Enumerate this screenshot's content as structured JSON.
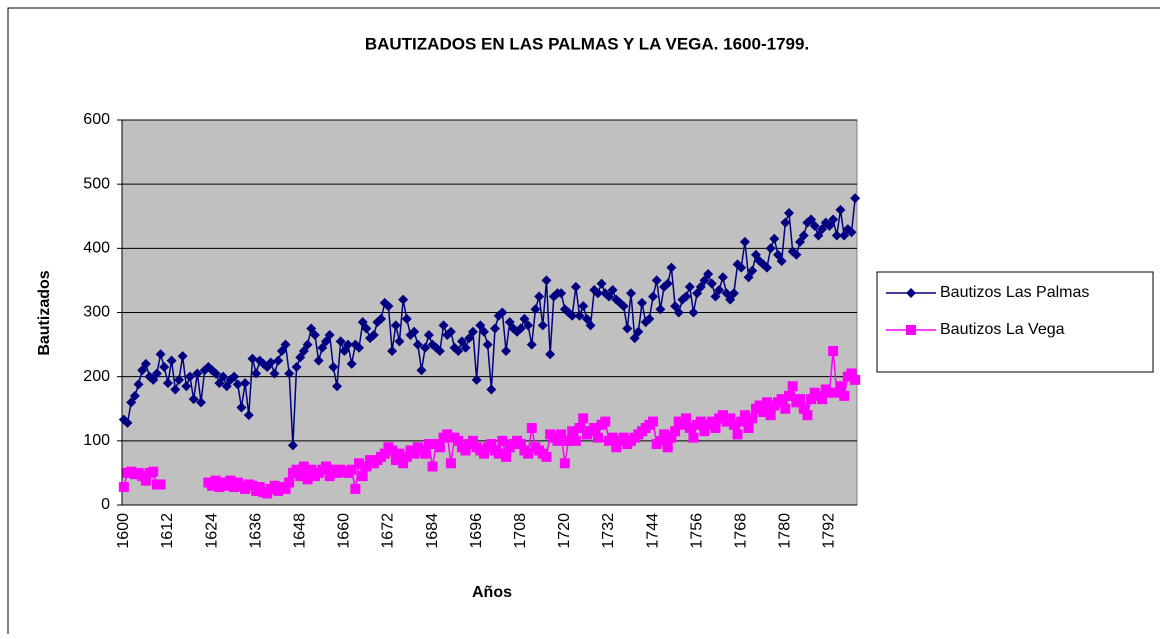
{
  "chart_data": {
    "type": "line",
    "title": "BAUTIZADOS EN LAS PALMAS Y LA VEGA. 1600-1799.",
    "x_label": "Años",
    "y_label": "Bautizados",
    "categories": [
      1600,
      null,
      null,
      null,
      null,
      null,
      null,
      null,
      null,
      null,
      null,
      null,
      1612,
      null,
      null,
      null,
      null,
      null,
      null,
      null,
      null,
      null,
      null,
      null,
      1624,
      null,
      null,
      null,
      null,
      null,
      null,
      null,
      null,
      null,
      null,
      null,
      1636,
      null,
      null,
      null,
      null,
      null,
      null,
      null,
      null,
      null,
      null,
      null,
      1648,
      null,
      null,
      null,
      null,
      null,
      null,
      null,
      null,
      null,
      null,
      null,
      1660,
      null,
      null,
      null,
      null,
      null,
      null,
      null,
      null,
      null,
      null,
      null,
      1672,
      null,
      null,
      null,
      null,
      null,
      null,
      null,
      null,
      null,
      null,
      null,
      1684,
      null,
      null,
      null,
      null,
      null,
      null,
      null,
      null,
      null,
      null,
      null,
      1696,
      null,
      null,
      null,
      null,
      null,
      null,
      null,
      null,
      null,
      null,
      null,
      1708,
      null,
      null,
      null,
      null,
      null,
      null,
      null,
      null,
      null,
      null,
      null,
      1720,
      null,
      null,
      null,
      null,
      null,
      null,
      null,
      null,
      null,
      null,
      null,
      1732,
      null,
      null,
      null,
      null,
      null,
      null,
      null,
      null,
      null,
      null,
      null,
      1744,
      null,
      null,
      null,
      null,
      null,
      null,
      null,
      null,
      null,
      null,
      null,
      1756,
      null,
      null,
      null,
      null,
      null,
      null,
      null,
      null,
      null,
      null,
      null,
      1768,
      null,
      null,
      null,
      null,
      null,
      null,
      null,
      null,
      null,
      null,
      null,
      1780,
      null,
      null,
      null,
      null,
      null,
      null,
      null,
      null,
      null,
      null,
      null,
      1792,
      null,
      null,
      null,
      null,
      null,
      null,
      null
    ],
    "series": [
      {
        "name": "Bautizos Las Palmas",
        "color": "#000080",
        "marker": "diamond",
        "values": [
          133,
          128,
          160,
          170,
          188,
          210,
          220,
          200,
          195,
          205,
          235,
          215,
          190,
          225,
          180,
          195,
          232,
          185,
          200,
          165,
          205,
          160,
          210,
          215,
          210,
          205,
          190,
          200,
          185,
          195,
          200,
          188,
          152,
          190,
          140,
          228,
          205,
          225,
          220,
          215,
          222,
          205,
          225,
          240,
          250,
          205,
          93,
          215,
          230,
          240,
          250,
          275,
          265,
          225,
          245,
          255,
          265,
          215,
          185,
          255,
          240,
          250,
          220,
          250,
          245,
          285,
          275,
          260,
          265,
          285,
          290,
          315,
          310,
          240,
          280,
          255,
          320,
          290,
          265,
          270,
          250,
          210,
          245,
          265,
          250,
          245,
          240,
          280,
          265,
          270,
          245,
          240,
          255,
          245,
          260,
          270,
          195,
          280,
          270,
          250,
          180,
          275,
          295,
          300,
          240,
          285,
          275,
          270,
          275,
          290,
          280,
          250,
          305,
          325,
          280,
          350,
          235,
          325,
          330,
          330,
          305,
          300,
          295,
          340,
          295,
          310,
          290,
          280,
          335,
          330,
          345,
          330,
          325,
          335,
          320,
          315,
          310,
          275,
          330,
          260,
          270,
          315,
          285,
          290,
          325,
          350,
          305,
          340,
          345,
          370,
          310,
          300,
          320,
          325,
          340,
          300,
          330,
          340,
          350,
          360,
          345,
          325,
          335,
          355,
          330,
          320,
          330,
          375,
          370,
          410,
          355,
          365,
          390,
          380,
          375,
          370,
          400,
          415,
          390,
          380,
          440,
          455,
          395,
          390,
          410,
          420,
          440,
          445,
          435,
          420,
          430,
          440,
          435,
          445,
          420,
          460,
          420,
          430,
          425,
          478
        ]
      },
      {
        "name": "Bautizos La Vega",
        "color": "#ff00ff",
        "marker": "square",
        "values": [
          28,
          50,
          52,
          48,
          50,
          45,
          38,
          50,
          52,
          32,
          32,
          null,
          null,
          null,
          null,
          null,
          null,
          null,
          null,
          null,
          null,
          null,
          null,
          35,
          30,
          38,
          28,
          35,
          30,
          38,
          28,
          35,
          30,
          25,
          32,
          30,
          22,
          28,
          20,
          18,
          25,
          30,
          22,
          28,
          25,
          35,
          50,
          55,
          45,
          60,
          40,
          55,
          45,
          50,
          55,
          60,
          45,
          55,
          50,
          55,
          52,
          50,
          55,
          25,
          65,
          45,
          60,
          70,
          65,
          70,
          75,
          80,
          90,
          85,
          70,
          80,
          65,
          75,
          85,
          80,
          90,
          85,
          80,
          95,
          60,
          95,
          90,
          105,
          110,
          65,
          105,
          100,
          90,
          85,
          95,
          100,
          90,
          85,
          80,
          90,
          95,
          85,
          80,
          100,
          75,
          90,
          95,
          100,
          95,
          85,
          80,
          120,
          90,
          85,
          80,
          75,
          110,
          105,
          100,
          110,
          65,
          100,
          115,
          100,
          120,
          135,
          110,
          115,
          120,
          105,
          125,
          130,
          100,
          105,
          90,
          100,
          105,
          95,
          100,
          105,
          110,
          115,
          120,
          125,
          130,
          95,
          100,
          110,
          90,
          105,
          115,
          130,
          125,
          135,
          120,
          105,
          125,
          130,
          115,
          125,
          130,
          120,
          135,
          140,
          130,
          135,
          125,
          110,
          130,
          140,
          120,
          135,
          150,
          155,
          145,
          160,
          140,
          155,
          160,
          165,
          150,
          170,
          185,
          160,
          165,
          150,
          140,
          165,
          175,
          170,
          165,
          180,
          175,
          240,
          175,
          185,
          170,
          200,
          205,
          195
        ]
      }
    ],
    "ylim": [
      0,
      600
    ],
    "yticks": [
      0,
      100,
      200,
      300,
      400,
      500,
      600
    ],
    "grid": true,
    "legend": "right"
  }
}
